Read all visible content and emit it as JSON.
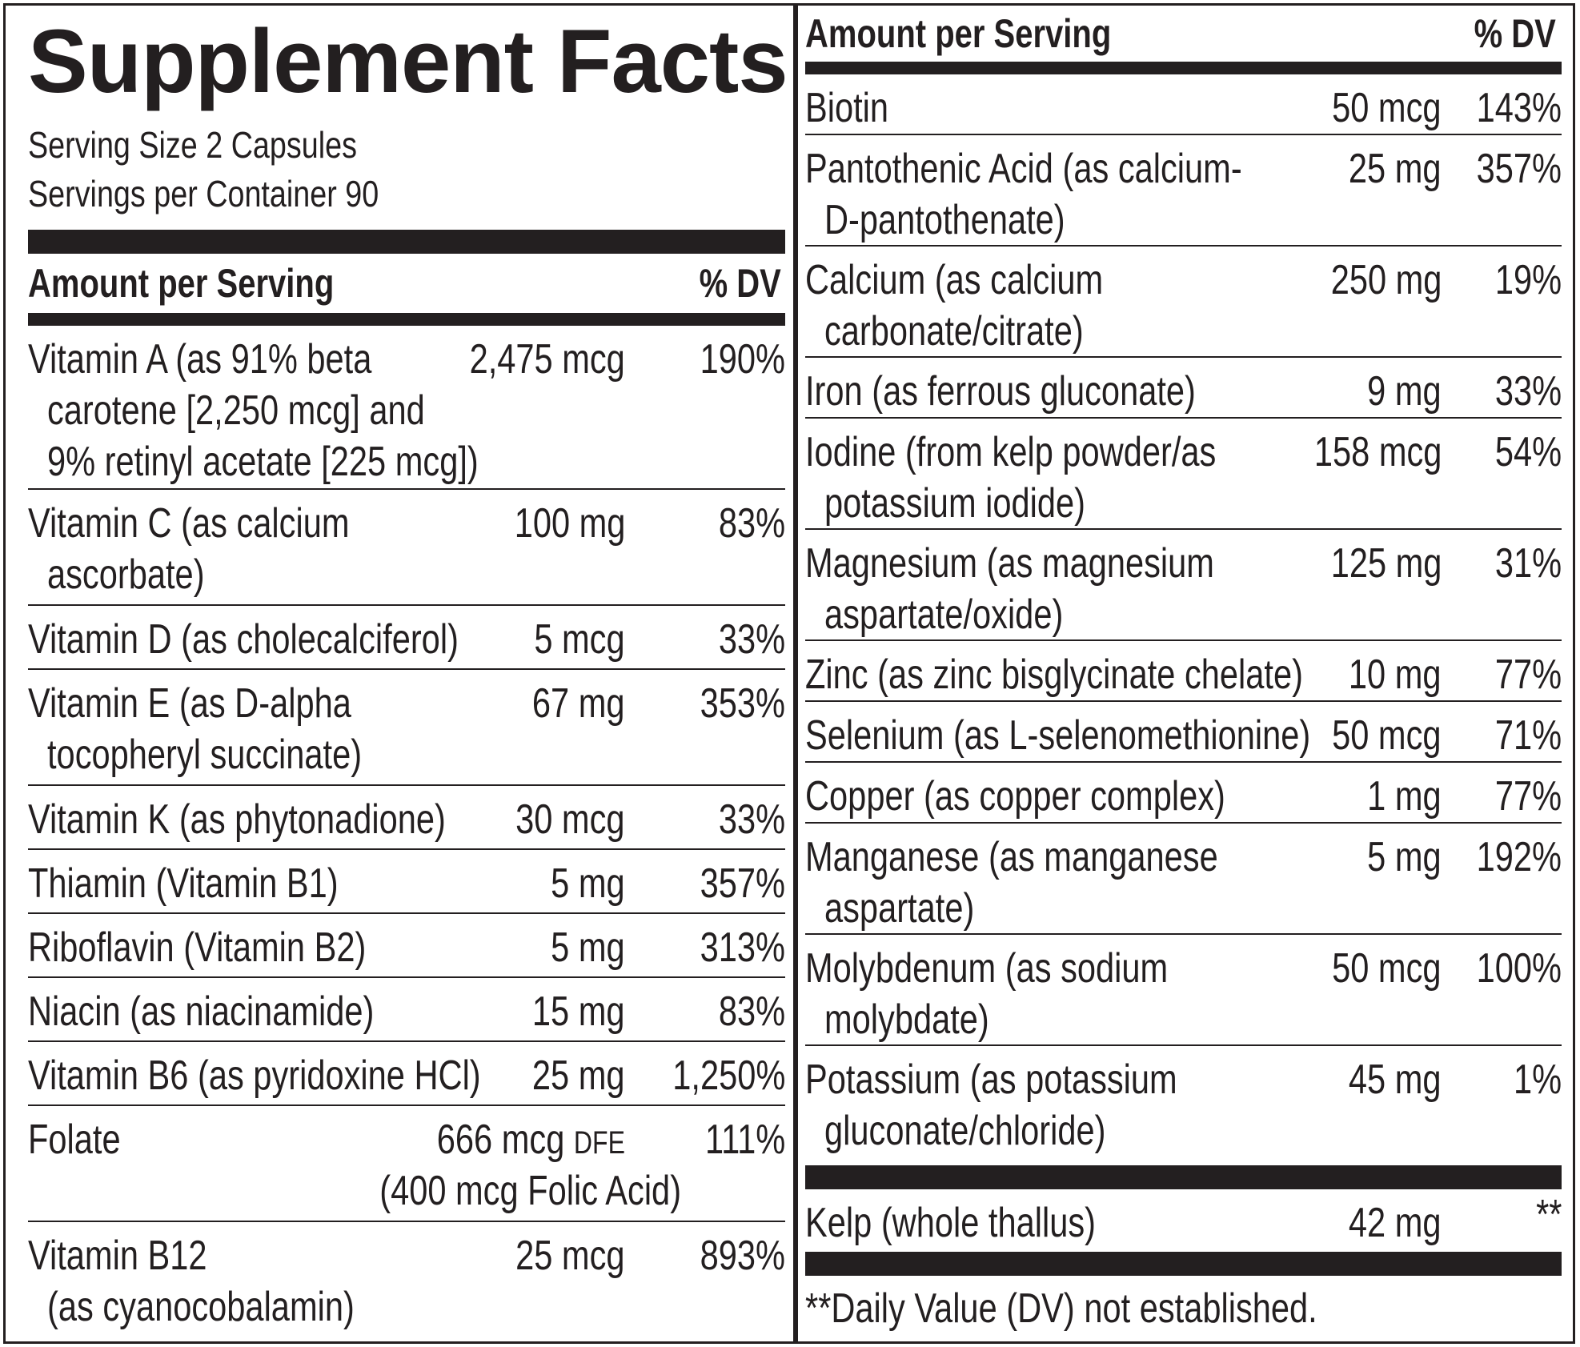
{
  "title": "Supplement Facts",
  "serving_size": "Serving Size 2 Capsules",
  "servings_per_container": "Servings per Container 90",
  "header_amount": "Amount per Serving",
  "header_dv": "% DV",
  "left_rows": [
    {
      "name_lines": [
        "Vitamin A (as 91% beta",
        "carotene [2,250 mcg] and",
        "9% retinyl acetate [225 mcg])"
      ],
      "amount": "2,475 mcg",
      "dv": "190%"
    },
    {
      "name_lines": [
        "Vitamin C (as calcium",
        "ascorbate)"
      ],
      "amount": "100 mg",
      "dv": "83%"
    },
    {
      "name_lines": [
        "Vitamin D (as cholecalciferol)"
      ],
      "amount": "5 mcg",
      "dv": "33%"
    },
    {
      "name_lines": [
        "Vitamin E (as D-alpha",
        "tocopheryl succinate)"
      ],
      "amount": "67 mg",
      "dv": "353%"
    },
    {
      "name_lines": [
        "Vitamin K (as phytonadione)"
      ],
      "amount": "30 mcg",
      "dv": "33%"
    },
    {
      "name_lines": [
        "Thiamin (Vitamin B1)"
      ],
      "amount": "5 mg",
      "dv": "357%"
    },
    {
      "name_lines": [
        "Riboflavin (Vitamin B2)"
      ],
      "amount": "5 mg",
      "dv": "313%"
    },
    {
      "name_lines": [
        "Niacin (as niacinamide)"
      ],
      "amount": "15 mg",
      "dv": "83%"
    },
    {
      "name_lines": [
        "Vitamin B6 (as pyridoxine HCl)"
      ],
      "amount": "25 mg",
      "dv": "1,250%"
    },
    {
      "name_lines": [
        "Folate"
      ],
      "amount": "666 mcg",
      "amount_suffix": "DFE",
      "amount_note": "(400 mcg Folic Acid)",
      "dv": "111%"
    },
    {
      "name_lines": [
        "Vitamin B12",
        "(as cyanocobalamin)"
      ],
      "amount": "25 mcg",
      "dv": "893%"
    }
  ],
  "right_rows": [
    {
      "name_lines": [
        "Biotin"
      ],
      "amount": "50 mcg",
      "dv": "143%"
    },
    {
      "name_lines": [
        "Pantothenic Acid (as calcium-",
        "D-pantothenate)"
      ],
      "amount": "25 mg",
      "dv": "357%"
    },
    {
      "name_lines": [
        "Calcium (as calcium",
        "carbonate/citrate)"
      ],
      "amount": "250 mg",
      "dv": "19%"
    },
    {
      "name_lines": [
        "Iron (as ferrous gluconate)"
      ],
      "amount": "9 mg",
      "dv": "33%"
    },
    {
      "name_lines": [
        "Iodine (from kelp powder/as",
        "potassium iodide)"
      ],
      "amount": "158 mcg",
      "dv": "54%"
    },
    {
      "name_lines": [
        "Magnesium (as magnesium",
        "aspartate/oxide)"
      ],
      "amount": "125 mg",
      "dv": "31%"
    },
    {
      "name_lines": [
        "Zinc (as zinc bisglycinate chelate)"
      ],
      "amount": "10 mg",
      "dv": "77%"
    },
    {
      "name_lines": [
        "Selenium (as L-selenomethionine)"
      ],
      "amount": "50 mcg",
      "dv": "71%"
    },
    {
      "name_lines": [
        "Copper (as copper complex)"
      ],
      "amount": "1 mg",
      "dv": "77%"
    },
    {
      "name_lines": [
        "Manganese (as manganese",
        "aspartate)"
      ],
      "amount": "5 mg",
      "dv": "192%"
    },
    {
      "name_lines": [
        "Molybdenum (as sodium",
        "molybdate)"
      ],
      "amount": "50 mcg",
      "dv": "100%"
    },
    {
      "name_lines": [
        "Potassium (as potassium",
        "gluconate/chloride)"
      ],
      "amount": "45 mg",
      "dv": "1%"
    }
  ],
  "other_rows": [
    {
      "name_lines": [
        "Kelp (whole thallus)"
      ],
      "amount": "42 mg",
      "dv": "**"
    }
  ],
  "footnote": "**Daily Value (DV) not established."
}
